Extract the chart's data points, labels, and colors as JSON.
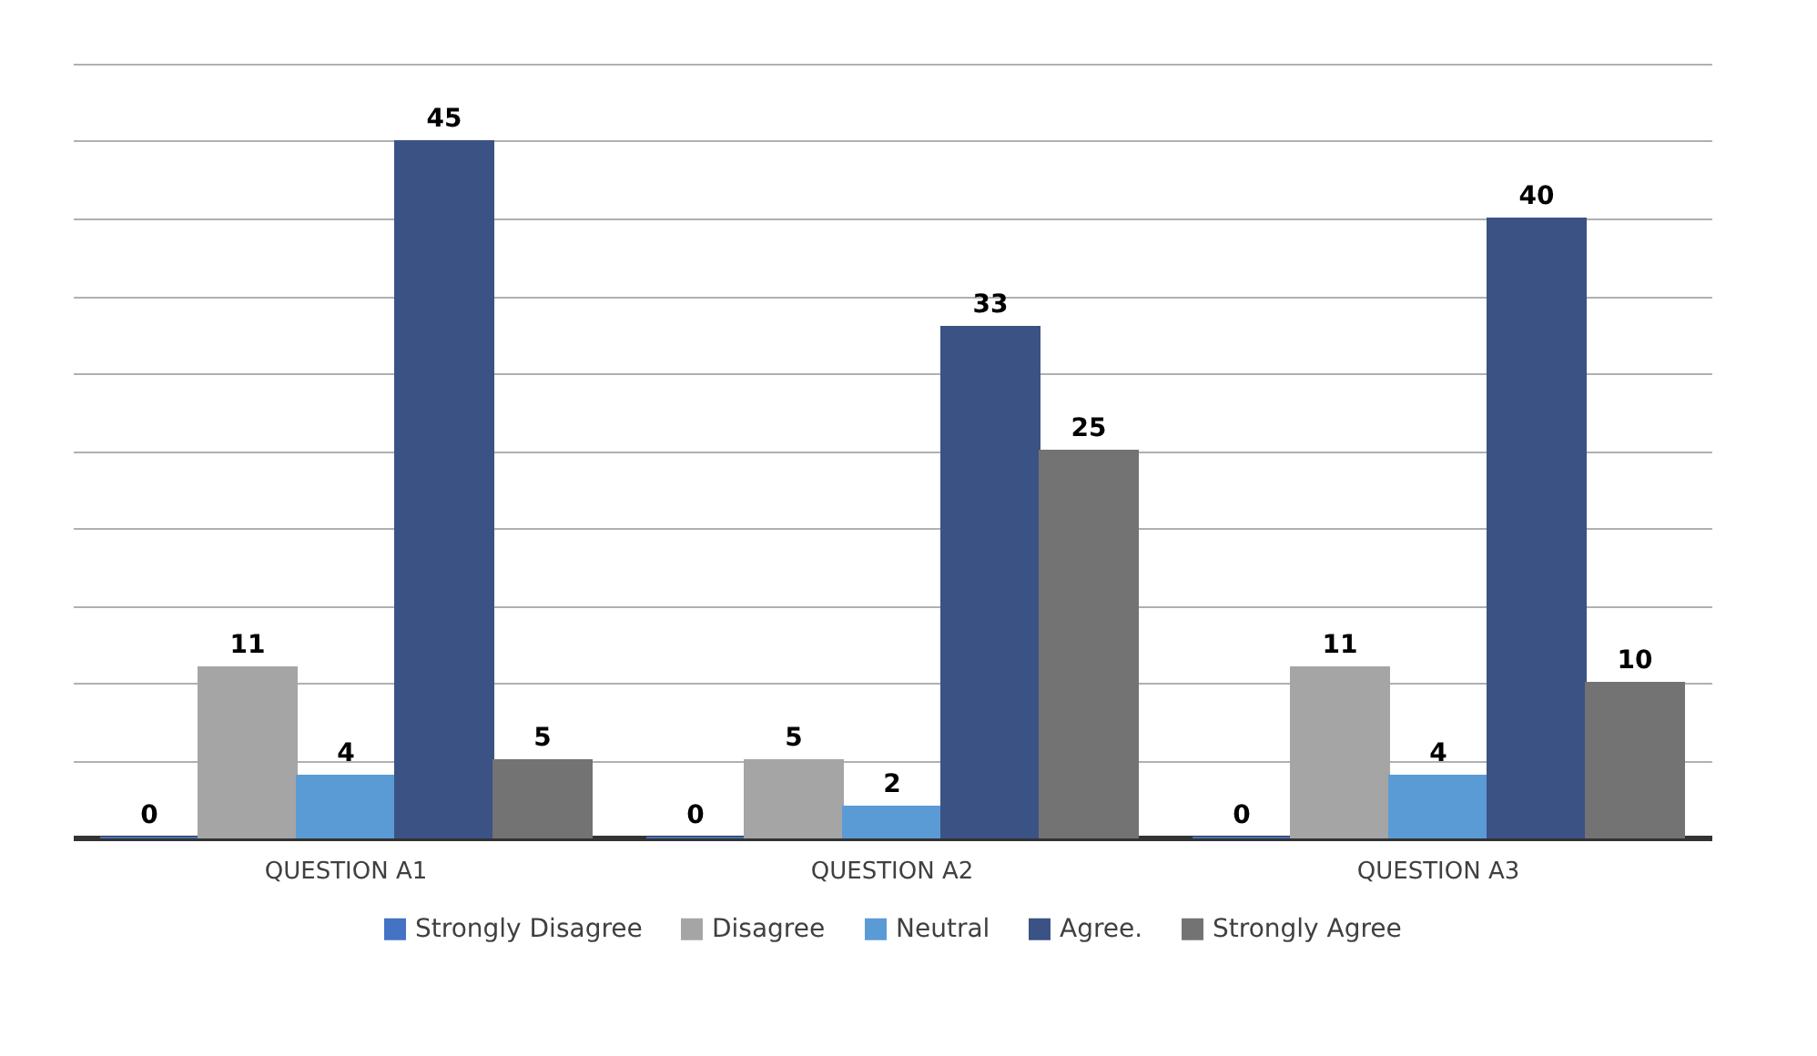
{
  "chart_data": {
    "type": "bar",
    "categories": [
      "QUESTION A1",
      "QUESTION A2",
      "QUESTION A3"
    ],
    "series": [
      {
        "name": "Strongly Disagree",
        "color": "#4472c4",
        "values": [
          0,
          0,
          0
        ]
      },
      {
        "name": "Disagree",
        "color": "#a5a5a5",
        "values": [
          11,
          5,
          11
        ]
      },
      {
        "name": "Neutral",
        "color": "#5b9bd5",
        "values": [
          4,
          2,
          4
        ]
      },
      {
        "name": "Agree.",
        "color": "#3b5284",
        "values": [
          45,
          33,
          40
        ]
      },
      {
        "name": "Strongly Agree",
        "color": "#737373",
        "values": [
          5,
          25,
          10
        ]
      }
    ],
    "ylim": [
      0,
      50
    ],
    "yticks": [
      {
        "value": 0,
        "label": null
      },
      {
        "value": 5,
        "label": null
      },
      {
        "value": 10,
        "label": null
      },
      {
        "value": 15,
        "label": null
      },
      {
        "value": 20,
        "label": null
      },
      {
        "value": 25,
        "label": null
      },
      {
        "value": 30,
        "label": null
      },
      {
        "value": 35,
        "label": null
      },
      {
        "value": 40,
        "label": null
      },
      {
        "value": 45,
        "label": null
      },
      {
        "value": 50,
        "label": null
      }
    ],
    "tick_labels": "x",
    "grid": "y",
    "legend": "bottom",
    "data_labels": true
  }
}
